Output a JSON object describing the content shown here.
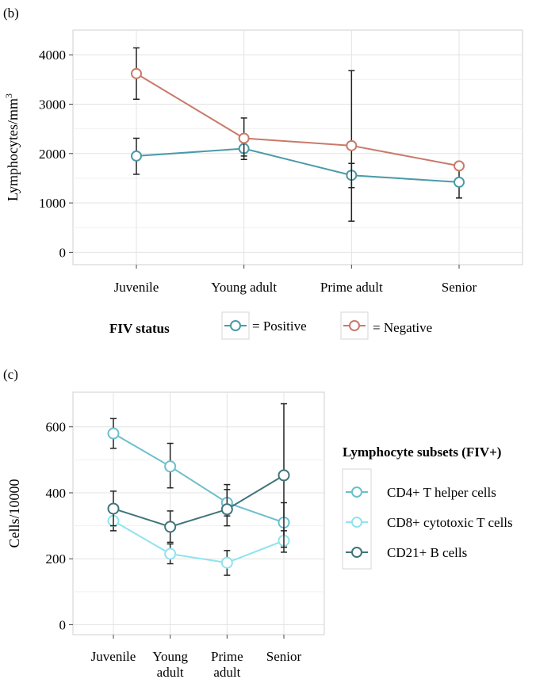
{
  "panel_b": {
    "panel_label": "(b)",
    "legend_title": "FIV status",
    "legend_items": [
      "= Positive",
      "= Negative"
    ],
    "chart_data": {
      "type": "line",
      "categories": [
        "Juvenile",
        "Young adult",
        "Prime adult",
        "Senior"
      ],
      "ylabel_main": "Lymphocytes/mm",
      "ylabel_sup": "3",
      "xlabel": "",
      "ylim": [
        -250,
        4500
      ],
      "yticks": [
        0,
        1000,
        2000,
        3000,
        4000
      ],
      "grid": true,
      "legend_position": "bottom",
      "series": [
        {
          "name": "Positive",
          "color": "#4a9aa8",
          "values": [
            1950,
            2100,
            1560,
            1420
          ],
          "err_low": [
            1580,
            1880,
            1310,
            1100
          ],
          "err_high": [
            2310,
            2260,
            1800,
            1720
          ]
        },
        {
          "name": "Negative",
          "color": "#c87a6a",
          "values": [
            3620,
            2310,
            2160,
            1750
          ],
          "err_low": [
            3100,
            1950,
            630,
            1740
          ],
          "err_high": [
            4140,
            2720,
            3680,
            1760
          ]
        }
      ]
    }
  },
  "panel_c": {
    "panel_label": "(c)",
    "legend_title": "Lymphocyte subsets (FIV+)",
    "chart_data": {
      "type": "line",
      "categories": [
        "Juvenile",
        "Young\nadult",
        "Prime\nadult",
        "Senior"
      ],
      "ylabel": "Cells/10000",
      "xlabel": "",
      "ylim": [
        -30,
        705
      ],
      "yticks": [
        0,
        200,
        400,
        600
      ],
      "grid": true,
      "legend_position": "right",
      "series": [
        {
          "name": "CD4+ T helper cells",
          "color": "#6bbfcc",
          "values": [
            580,
            480,
            370,
            310
          ],
          "err_low": [
            535,
            415,
            330,
            240
          ],
          "err_high": [
            625,
            550,
            410,
            370
          ]
        },
        {
          "name": "CD8+ cytotoxic T cells",
          "color": "#8fe3ee",
          "values": [
            315,
            215,
            188,
            255
          ],
          "err_low": [
            285,
            185,
            150,
            220
          ],
          "err_high": [
            350,
            245,
            225,
            285
          ]
        },
        {
          "name": "CD21+ B cells",
          "color": "#40757a",
          "values": [
            352,
            297,
            350,
            453
          ],
          "err_low": [
            300,
            250,
            300,
            235
          ],
          "err_high": [
            405,
            345,
            425,
            670
          ]
        }
      ]
    }
  }
}
